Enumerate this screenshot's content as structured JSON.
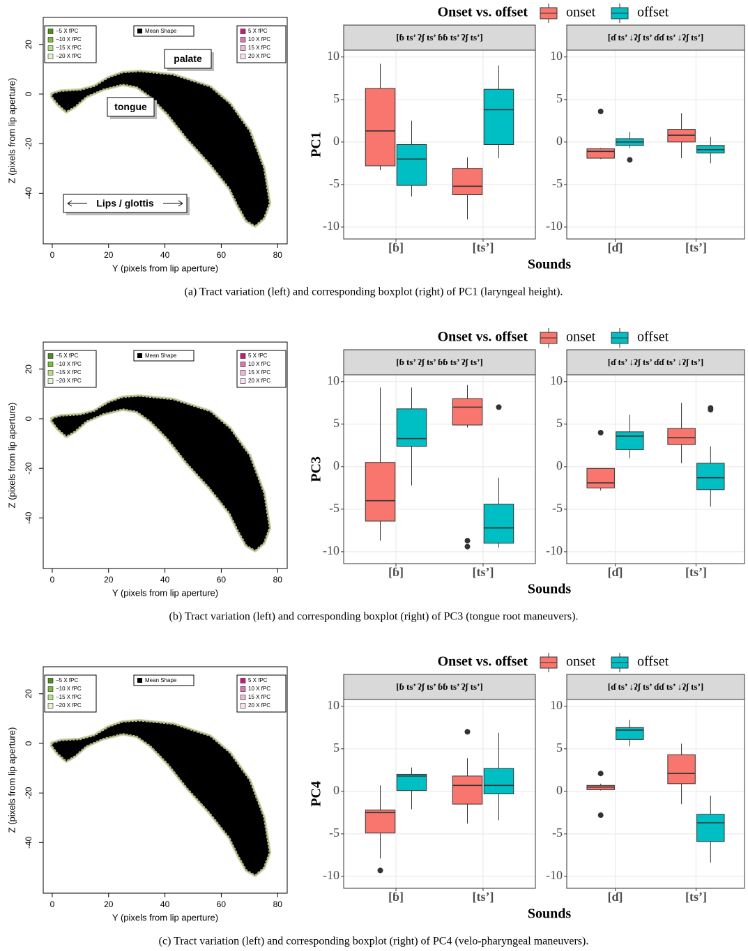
{
  "chart_data": [
    {
      "type": "tract",
      "xlabel": "Y (pixels from lip aperture)",
      "ylabel": "Z (pixels from lip aperture)",
      "xlim": [
        -3.2,
        83.4
      ],
      "ylim": [
        -60.4,
        30.9
      ],
      "xticks": [
        0,
        20,
        40,
        60,
        80
      ],
      "yticks": [
        -40,
        -20,
        0,
        20
      ],
      "legend_left": [
        {
          "label": "−5 X fPC",
          "color": "#4d9221"
        },
        {
          "label": "−10 X fPC",
          "color": "#7fbc41"
        },
        {
          "label": "−15 X fPC",
          "color": "#b8e186"
        },
        {
          "label": "−20 X fPC",
          "color": "#e6f5d0"
        }
      ],
      "legend_mean": {
        "label": "Mean Shape",
        "color": "#000000"
      },
      "legend_right": [
        {
          "label": "5 X fPC",
          "color": "#c51b7d"
        },
        {
          "label": "10 X fPC",
          "color": "#de77ae"
        },
        {
          "label": "15 X fPC",
          "color": "#f1b6da"
        },
        {
          "label": "20 X fPC",
          "color": "#fde0ef"
        }
      ],
      "mean_shape": {
        "x": [
          0,
          3,
          10,
          15,
          20,
          25,
          31,
          43,
          56,
          63,
          70,
          75,
          77,
          75,
          72,
          69,
          66,
          63,
          56,
          48,
          41,
          35,
          30,
          25,
          18,
          12,
          8,
          5,
          2,
          0
        ],
        "y": [
          0,
          1,
          1.5,
          3,
          6.5,
          8.5,
          9,
          7.6,
          2.8,
          -4,
          -15,
          -30,
          -44,
          -50,
          -53,
          -51,
          -45,
          -38,
          -28,
          -18,
          -8,
          -1,
          3,
          4,
          2,
          -1,
          -5,
          -7,
          -4,
          -1
        ]
      },
      "annotations": [
        "palate",
        "tongue",
        "Lips / glottis"
      ]
    },
    {
      "type": "boxplot",
      "legend_title": "Onset vs. offset",
      "series": [
        {
          "name": "onset",
          "color": "#F8766D"
        },
        {
          "name": "offset",
          "color": "#00BFC4"
        }
      ],
      "ylabel": "PC1",
      "xlabel": "Sounds",
      "ylim": [
        -11.4,
        10.8
      ],
      "yticks": [
        -10,
        -5,
        0,
        5,
        10
      ],
      "grid": true,
      "facets": [
        {
          "label": "[ɓ ts’ ʔʃ ts’ ɓɓ ts’ ʔʃ ts’]",
          "categories": [
            "[ɓ]",
            "[ts’]"
          ],
          "boxes": [
            [
              {
                "whisker_low": -3.3,
                "q1": -2.8,
                "median": 1.3,
                "q3": 6.3,
                "whisker_high": 9.2,
                "outliers": []
              },
              {
                "whisker_low": -6.4,
                "q1": -5.1,
                "median": -2.0,
                "q3": -0.3,
                "whisker_high": 2.5,
                "outliers": []
              }
            ],
            [
              {
                "whisker_low": -9.1,
                "q1": -6.2,
                "median": -5.2,
                "q3": -3.1,
                "whisker_high": -1.8,
                "outliers": []
              },
              {
                "whisker_low": -1.9,
                "q1": -0.3,
                "median": 3.8,
                "q3": 6.2,
                "whisker_high": 9.0,
                "outliers": []
              }
            ]
          ]
        },
        {
          "label": "[ɗ ts’ ↓ʔʃ ts’ ɗɗ ts’ ↓ʔʃ ts’]",
          "categories": [
            "[ɗ]",
            "[ts’]"
          ],
          "boxes": [
            [
              {
                "whisker_low": -2.0,
                "q1": -1.9,
                "median": -1.1,
                "q3": -0.8,
                "whisker_high": -0.7,
                "outliers": [
                  3.6
                ]
              },
              {
                "whisker_low": -0.7,
                "q1": -0.4,
                "median": 0,
                "q3": 0.4,
                "whisker_high": 1.2,
                "outliers": [
                  -2.1
                ]
              }
            ],
            [
              {
                "whisker_low": -1.9,
                "q1": 0,
                "median": 0.8,
                "q3": 1.5,
                "whisker_high": 3.4,
                "outliers": []
              },
              {
                "whisker_low": -2.5,
                "q1": -1.3,
                "median": -0.9,
                "q3": -0.4,
                "whisker_high": 0.6,
                "outliers": []
              }
            ]
          ]
        }
      ],
      "caption": "(a) Tract variation (left) and corresponding boxplot (right) of PC1 (laryngeal height)."
    },
    {
      "type": "tract",
      "xlabel": "Y (pixels from lip aperture)",
      "ylabel": "Z (pixels from lip aperture)",
      "xlim": [
        -3.2,
        83.4
      ],
      "ylim": [
        -60.4,
        30.9
      ],
      "xticks": [
        0,
        20,
        40,
        60,
        80
      ],
      "yticks": [
        -40,
        -20,
        0,
        20
      ],
      "legend_left": [
        {
          "label": "−5 X fPC",
          "color": "#4d9221"
        },
        {
          "label": "−10 X fPC",
          "color": "#7fbc41"
        },
        {
          "label": "−15 X fPC",
          "color": "#b8e186"
        },
        {
          "label": "−20 X fPC",
          "color": "#e6f5d0"
        }
      ],
      "legend_mean": {
        "label": "Mean Shape",
        "color": "#000000"
      },
      "legend_right": [
        {
          "label": "5 X fPC",
          "color": "#c51b7d"
        },
        {
          "label": "10 X fPC",
          "color": "#de77ae"
        },
        {
          "label": "15 X fPC",
          "color": "#f1b6da"
        },
        {
          "label": "20 X fPC",
          "color": "#fde0ef"
        }
      ],
      "mean_shape": {
        "x": [
          0,
          3,
          10,
          15,
          20,
          25,
          31,
          43,
          56,
          63,
          70,
          75,
          77,
          75,
          72,
          69,
          66,
          63,
          56,
          48,
          41,
          35,
          30,
          25,
          18,
          12,
          8,
          5,
          2,
          0
        ],
        "y": [
          0,
          1,
          1.5,
          3,
          6.5,
          8.5,
          9,
          7.6,
          2.8,
          -4,
          -15,
          -30,
          -44,
          -50,
          -53,
          -51,
          -45,
          -38,
          -28,
          -18,
          -8,
          -1,
          3,
          4,
          2,
          -1,
          -5,
          -7,
          -4,
          -1
        ]
      }
    },
    {
      "type": "boxplot",
      "legend_title": "Onset vs. offset",
      "series": [
        {
          "name": "onset",
          "color": "#F8766D"
        },
        {
          "name": "offset",
          "color": "#00BFC4"
        }
      ],
      "ylabel": "PC3",
      "xlabel": "Sounds",
      "ylim": [
        -11.4,
        10.8
      ],
      "yticks": [
        -10,
        -5,
        0,
        5,
        10
      ],
      "grid": true,
      "facets": [
        {
          "label": "[ɓ ts’ ʔʃ ts’ ɓɓ ts’ ʔʃ ts’]",
          "categories": [
            "[ɓ]",
            "[ts’]"
          ],
          "boxes": [
            [
              {
                "whisker_low": -8.7,
                "q1": -6.4,
                "median": -4.0,
                "q3": 0.5,
                "whisker_high": 9.3,
                "outliers": []
              },
              {
                "whisker_low": -2.2,
                "q1": 2.4,
                "median": 3.3,
                "q3": 6.8,
                "whisker_high": 9.3,
                "outliers": []
              }
            ],
            [
              {
                "whisker_low": 4.6,
                "q1": 4.9,
                "median": 7.0,
                "q3": 8.0,
                "whisker_high": 9.6,
                "outliers": [
                  -8.7,
                  -9.4
                ]
              },
              {
                "whisker_low": -9.5,
                "q1": -9.0,
                "median": -7.2,
                "q3": -4.4,
                "whisker_high": -1.3,
                "outliers": [
                  7.0
                ]
              }
            ]
          ]
        },
        {
          "label": "[ɗ ts’ ↓ʔʃ ts’ ɗɗ ts’ ↓ʔʃ ts’]",
          "categories": [
            "[ɗ]",
            "[ts’]"
          ],
          "boxes": [
            [
              {
                "whisker_low": -2.8,
                "q1": -2.5,
                "median": -1.9,
                "q3": -0.2,
                "whisker_high": -0.2,
                "outliers": [
                  4.0
                ]
              },
              {
                "whisker_low": 1.0,
                "q1": 2.0,
                "median": 3.6,
                "q3": 4.1,
                "whisker_high": 6.1,
                "outliers": []
              }
            ],
            [
              {
                "whisker_low": 0.4,
                "q1": 2.6,
                "median": 3.4,
                "q3": 4.5,
                "whisker_high": 7.5,
                "outliers": []
              },
              {
                "whisker_low": -4.7,
                "q1": -2.7,
                "median": -1.3,
                "q3": 0.4,
                "whisker_high": 2.4,
                "outliers": [
                  6.9,
                  6.7
                ]
              }
            ]
          ]
        }
      ],
      "caption": "(b) Tract variation (left) and corresponding boxplot (right) of PC3 (tongue root maneuvers)."
    },
    {
      "type": "tract",
      "xlabel": "Y (pixels from lip aperture)",
      "ylabel": "Z (pixels from lip aperture)",
      "xlim": [
        -3.2,
        83.4
      ],
      "ylim": [
        -60.4,
        30.9
      ],
      "xticks": [
        0,
        20,
        40,
        60,
        80
      ],
      "yticks": [
        -40,
        -20,
        0,
        20
      ],
      "legend_left": [
        {
          "label": "−5 X fPC",
          "color": "#4d9221"
        },
        {
          "label": "−10 X fPC",
          "color": "#7fbc41"
        },
        {
          "label": "−15 X fPC",
          "color": "#b8e186"
        },
        {
          "label": "−20 X fPC",
          "color": "#e6f5d0"
        }
      ],
      "legend_mean": {
        "label": "Mean Shape",
        "color": "#000000"
      },
      "legend_right": [
        {
          "label": "5 X fPC",
          "color": "#c51b7d"
        },
        {
          "label": "10 X fPC",
          "color": "#de77ae"
        },
        {
          "label": "15 X fPC",
          "color": "#f1b6da"
        },
        {
          "label": "20 X fPC",
          "color": "#fde0ef"
        }
      ],
      "mean_shape": {
        "x": [
          0,
          3,
          10,
          15,
          20,
          25,
          31,
          43,
          56,
          63,
          70,
          75,
          77,
          75,
          72,
          69,
          66,
          63,
          56,
          48,
          41,
          35,
          30,
          25,
          18,
          12,
          8,
          5,
          2,
          0
        ],
        "y": [
          0,
          1,
          1.5,
          3,
          6.5,
          8.5,
          9,
          7.6,
          2.8,
          -4,
          -15,
          -30,
          -44,
          -50,
          -53,
          -51,
          -45,
          -38,
          -28,
          -18,
          -8,
          -1,
          3,
          4,
          2,
          -1,
          -5,
          -7,
          -4,
          -1
        ]
      }
    },
    {
      "type": "boxplot",
      "legend_title": "Onset vs. offset",
      "series": [
        {
          "name": "onset",
          "color": "#F8766D"
        },
        {
          "name": "offset",
          "color": "#00BFC4"
        }
      ],
      "ylabel": "PC4",
      "xlabel": "Sounds",
      "ylim": [
        -11.4,
        10.8
      ],
      "yticks": [
        -10,
        -5,
        0,
        5,
        10
      ],
      "grid": true,
      "facets": [
        {
          "label": "[ɓ ts’ ʔʃ ts’ ɓɓ ts’ ʔʃ ts’]",
          "categories": [
            "[ɓ]",
            "[ts’]"
          ],
          "boxes": [
            [
              {
                "whisker_low": -7.9,
                "q1": -4.9,
                "median": -2.5,
                "q3": -2.2,
                "whisker_high": 0.7,
                "outliers": [
                  -9.3
                ]
              },
              {
                "whisker_low": -2.1,
                "q1": 0.1,
                "median": 1.8,
                "q3": 2.0,
                "whisker_high": 2.8,
                "outliers": []
              }
            ],
            [
              {
                "whisker_low": -3.8,
                "q1": -1.5,
                "median": 0.7,
                "q3": 1.8,
                "whisker_high": 3.9,
                "outliers": [
                  7.0
                ]
              },
              {
                "whisker_low": -3.4,
                "q1": -0.3,
                "median": 0.7,
                "q3": 2.7,
                "whisker_high": 6.9,
                "outliers": []
              }
            ]
          ]
        },
        {
          "label": "[ɗ ts’ ↓ʔʃ ts’ ɗɗ ts’ ↓ʔʃ ts’]",
          "categories": [
            "[ɗ]",
            "[ts’]"
          ],
          "boxes": [
            [
              {
                "whisker_low": 0.1,
                "q1": 0.2,
                "median": 0.5,
                "q3": 0.7,
                "whisker_high": 0.9,
                "outliers": [
                  2.1,
                  -2.8
                ]
              },
              {
                "whisker_low": 5.3,
                "q1": 6.1,
                "median": 7.2,
                "q3": 7.5,
                "whisker_high": 8.4,
                "outliers": []
              }
            ],
            [
              {
                "whisker_low": -1.5,
                "q1": 0.9,
                "median": 2.1,
                "q3": 4.3,
                "whisker_high": 5.6,
                "outliers": []
              },
              {
                "whisker_low": -8.4,
                "q1": -5.9,
                "median": -3.7,
                "q3": -2.7,
                "whisker_high": -0.5,
                "outliers": []
              }
            ]
          ]
        }
      ],
      "caption": "(c) Tract variation (left) and corresponding boxplot (right) of PC4 (velo-pharyngeal maneuvers)."
    }
  ]
}
